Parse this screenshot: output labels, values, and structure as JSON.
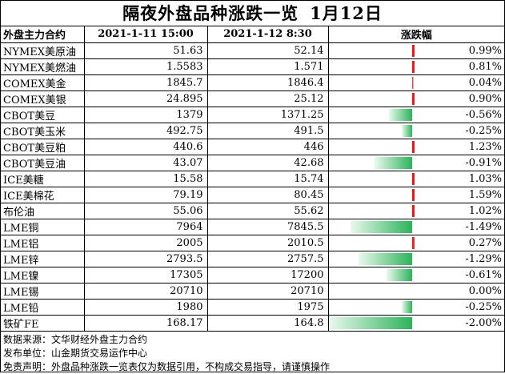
{
  "title": "隔夜外盘品种涨跌一览",
  "title_date": "1月12日",
  "headers": {
    "name": "外盘主力合约",
    "date1": "2021-1-11 15:00",
    "date2": "2021-1-12 8:30",
    "change": "涨跌幅"
  },
  "rows": [
    {
      "name": "NYMEX美原油",
      "v1": "51.63",
      "v2": "52.14",
      "pct": "0.99%",
      "chg": 0.99
    },
    {
      "name": "NYMEX美燃油",
      "v1": "1.5583",
      "v2": "1.571",
      "pct": "0.81%",
      "chg": 0.81
    },
    {
      "name": "COMEX美金",
      "v1": "1845.7",
      "v2": "1846.4",
      "pct": "0.04%",
      "chg": 0.04
    },
    {
      "name": "COMEX美银",
      "v1": "24.895",
      "v2": "25.12",
      "pct": "0.90%",
      "chg": 0.9
    },
    {
      "name": "CBOT美豆",
      "v1": "1379",
      "v2": "1371.25",
      "pct": "-0.56%",
      "chg": -0.56
    },
    {
      "name": "CBOT美玉米",
      "v1": "492.75",
      "v2": "491.5",
      "pct": "-0.25%",
      "chg": -0.25
    },
    {
      "name": "CBOT美豆粕",
      "v1": "440.6",
      "v2": "446",
      "pct": "1.23%",
      "chg": 1.23
    },
    {
      "name": "CBOT美豆油",
      "v1": "43.07",
      "v2": "42.68",
      "pct": "-0.91%",
      "chg": -0.91
    },
    {
      "name": "ICE美糖",
      "v1": "15.58",
      "v2": "15.74",
      "pct": "1.03%",
      "chg": 1.03
    },
    {
      "name": "ICE美棉花",
      "v1": "79.19",
      "v2": "80.45",
      "pct": "1.59%",
      "chg": 1.59
    },
    {
      "name": "布伦油",
      "v1": "55.06",
      "v2": "55.62",
      "pct": "1.02%",
      "chg": 1.02
    },
    {
      "name": "LME铜",
      "v1": "7964",
      "v2": "7845.5",
      "pct": "-1.49%",
      "chg": -1.49
    },
    {
      "name": "LME铝",
      "v1": "2005",
      "v2": "2010.5",
      "pct": "0.27%",
      "chg": 0.27
    },
    {
      "name": "LME锌",
      "v1": "2793.5",
      "v2": "2757.5",
      "pct": "-1.29%",
      "chg": -1.29
    },
    {
      "name": "LME镍",
      "v1": "17305",
      "v2": "17200",
      "pct": "-0.61%",
      "chg": -0.61
    },
    {
      "name": "LME锡",
      "v1": "20710",
      "v2": "20710",
      "pct": "0.00%",
      "chg": 0.0
    },
    {
      "name": "LME铅",
      "v1": "1980",
      "v2": "1975",
      "pct": "-0.25%",
      "chg": -0.25
    },
    {
      "name": "铁矿FE",
      "v1": "168.17",
      "v2": "164.8",
      "pct": "-2.00%",
      "chg": -2.0
    }
  ],
  "footer": {
    "source": "数据来源：文华财经外盘主力合约",
    "publisher": "发布单位：山金期货交易运作中心",
    "disclaimer": "免责声明：外盘品种涨跌一览表仅为数据引用，不构成交易指导，请谨慎操作"
  },
  "colors": {
    "up": "#f21010",
    "down": "#2cb35a"
  }
}
